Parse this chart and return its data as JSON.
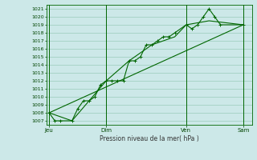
{
  "title": "Pression niveau de la mer( hPa )",
  "bg_color": "#cce8e8",
  "grid_color": "#99ccbb",
  "line_color": "#006600",
  "ylim": [
    1006.5,
    1021.5
  ],
  "yticks": [
    1007,
    1008,
    1009,
    1010,
    1011,
    1012,
    1013,
    1014,
    1015,
    1016,
    1017,
    1018,
    1019,
    1020,
    1021
  ],
  "xtick_labels": [
    "Jeu",
    "Dim",
    "Ven",
    "Sam"
  ],
  "xtick_positions": [
    0,
    10,
    24,
    34
  ],
  "vline_positions": [
    0,
    10,
    24,
    34
  ],
  "series1_x": [
    0,
    1,
    2,
    4,
    5,
    6,
    7,
    8,
    9,
    10,
    11,
    12,
    13,
    14,
    15,
    16,
    17,
    18,
    19,
    20,
    21,
    22,
    24,
    25,
    26,
    27,
    28,
    29,
    30,
    34
  ],
  "series1_y": [
    1008.0,
    1007.0,
    1007.0,
    1007.0,
    1008.5,
    1009.5,
    1009.5,
    1010.0,
    1011.5,
    1012.0,
    1012.0,
    1012.0,
    1012.0,
    1014.5,
    1014.5,
    1015.0,
    1016.5,
    1016.5,
    1017.0,
    1017.5,
    1017.5,
    1018.0,
    1019.0,
    1018.5,
    1019.0,
    1020.0,
    1021.0,
    1020.0,
    1019.0,
    1019.0
  ],
  "series2_x": [
    0,
    4,
    10,
    14,
    18,
    22,
    24,
    28,
    34
  ],
  "series2_y": [
    1008.0,
    1007.0,
    1012.0,
    1014.5,
    1016.5,
    1017.5,
    1019.0,
    1019.5,
    1019.0
  ],
  "trend_x": [
    0,
    34
  ],
  "trend_y": [
    1008.0,
    1019.0
  ]
}
